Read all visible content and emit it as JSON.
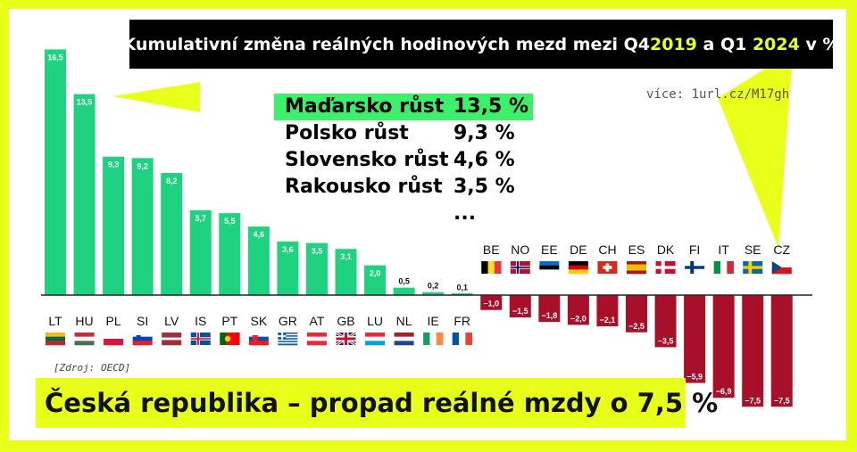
{
  "title": {
    "before": "Kumulativní změna reálných hodinových mezd mezi Q4 ",
    "year1": "2019",
    "middle": " a Q1 ",
    "year2": "2024",
    "after": " v %"
  },
  "more_link": "více: 1url.cz/M17gh",
  "highlights": [
    {
      "country": "Maďarsko růst",
      "value": "13,5 %"
    },
    {
      "country": "Polsko růst",
      "value": "9,3 %"
    },
    {
      "country": "Slovensko růst",
      "value": "4,6 %"
    },
    {
      "country": "Rakousko růst",
      "value": "3,5 % ..."
    }
  ],
  "source": "[Zdroj: OECD]",
  "headline": "Česká republika – propad reálné mzdy o 7,5 %",
  "colors": {
    "positive": "#1fd27f",
    "negative": "#a8102a",
    "accent": "#e8ff1a",
    "highlight": "#3df06a"
  },
  "chart_data": {
    "type": "bar",
    "title": "Kumulativní změna reálných hodinových mezd mezi Q4 2019 a Q1 2024 v %",
    "categories": [
      "LT",
      "HU",
      "PL",
      "SI",
      "LV",
      "IS",
      "PT",
      "SK",
      "GR",
      "AT",
      "GB",
      "LU",
      "NL",
      "IE",
      "FR",
      "BE",
      "NO",
      "EE",
      "DE",
      "CH",
      "ES",
      "DK",
      "FI",
      "IT",
      "SE",
      "CZ"
    ],
    "values": [
      16.5,
      13.5,
      9.3,
      9.2,
      8.2,
      5.7,
      5.5,
      4.6,
      3.6,
      3.5,
      3.1,
      2.0,
      0.5,
      0.2,
      0.1,
      -1.0,
      -1.5,
      -1.8,
      -2.0,
      -2.1,
      -2.5,
      -3.5,
      -5.9,
      -6.9,
      -7.5,
      -7.5
    ],
    "value_labels": [
      "16,5",
      "13,5",
      "9,3",
      "9,2",
      "8,2",
      "5,7",
      "5,5",
      "4,6",
      "3,6",
      "3,5",
      "3,1",
      "2,0",
      "0,5",
      "0,2",
      "0,1",
      "−1,0",
      "−1,5",
      "−1,8",
      "−2,0",
      "−2,1",
      "−2,5",
      "−3,5",
      "−5,9",
      "−6,9",
      "−7,5",
      "−7,5"
    ],
    "xlabel": "",
    "ylabel": "",
    "grid": false,
    "legend": "none"
  }
}
